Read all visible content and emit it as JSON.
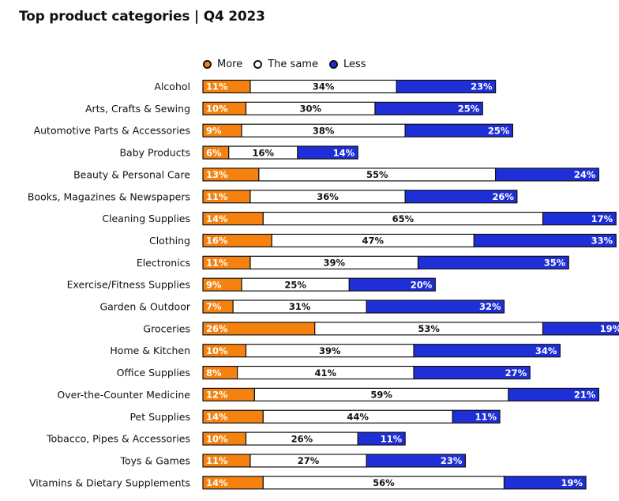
{
  "chart_data": {
    "type": "bar",
    "stacked": true,
    "orientation": "horizontal",
    "title": "Top product categories | Q4 2023",
    "xlabel": "",
    "ylabel": "",
    "legend_position": "top",
    "categories": [
      "Alcohol",
      "Arts, Crafts & Sewing",
      "Automotive Parts & Accessories",
      "Baby Products",
      "Beauty & Personal Care",
      "Books, Magazines & Newspapers",
      "Cleaning Supplies",
      "Clothing",
      "Electronics",
      "Exercise/Fitness Supplies",
      "Garden & Outdoor",
      "Groceries",
      "Home & Kitchen",
      "Office Supplies",
      "Over-the-Counter Medicine",
      "Pet Supplies",
      "Tobacco, Pipes & Accessories",
      "Toys & Games",
      "Vitamins & Dietary Supplements"
    ],
    "series": [
      {
        "name": "More",
        "color": "#F5820F",
        "label_color": "#ffffff",
        "values": [
          11,
          10,
          9,
          6,
          13,
          11,
          14,
          16,
          11,
          9,
          7,
          26,
          10,
          8,
          12,
          14,
          10,
          11,
          14
        ]
      },
      {
        "name": "The same",
        "color": "#ffffff",
        "label_color": "#111111",
        "values": [
          34,
          30,
          38,
          16,
          55,
          36,
          65,
          47,
          39,
          25,
          31,
          53,
          39,
          41,
          59,
          44,
          26,
          27,
          56
        ]
      },
      {
        "name": "Less",
        "color": "#1F2FD8",
        "label_color": "#ffffff",
        "values": [
          23,
          25,
          25,
          14,
          24,
          26,
          17,
          33,
          35,
          20,
          32,
          19,
          34,
          27,
          21,
          11,
          11,
          23,
          19
        ]
      }
    ],
    "value_suffix": "%"
  }
}
